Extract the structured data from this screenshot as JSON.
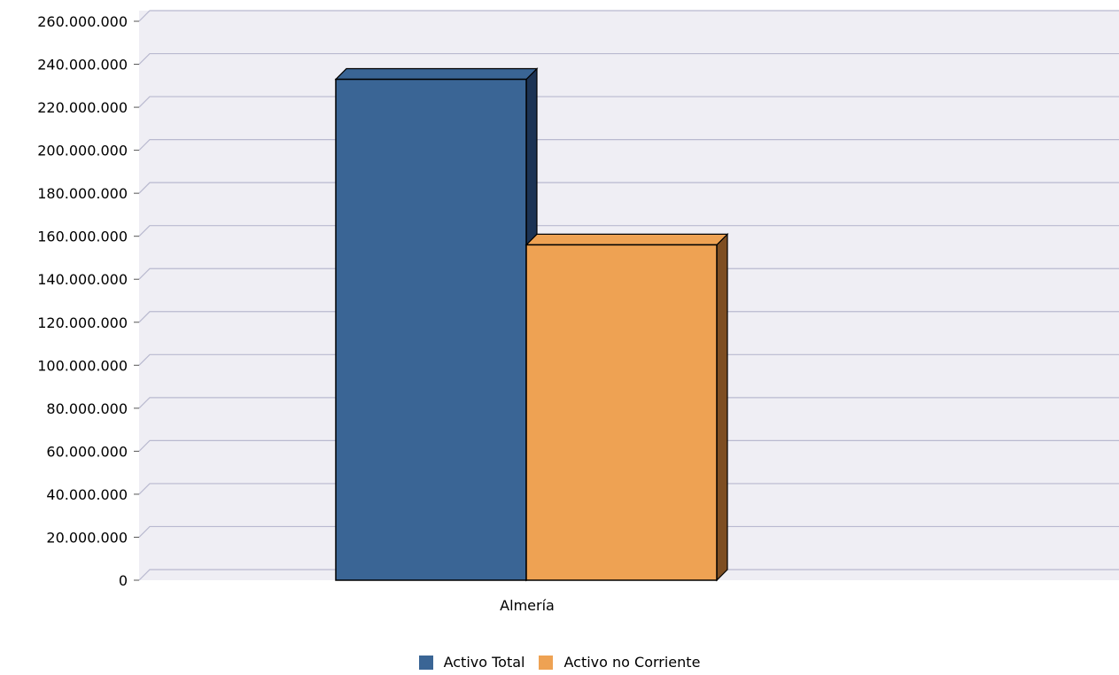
{
  "chart_data": {
    "type": "bar",
    "title": "",
    "xlabel": "",
    "ylabel": "",
    "categories": [
      "Almería"
    ],
    "series": [
      {
        "name": "Activo Total",
        "values": [
          233000000
        ],
        "color": "#3a6595",
        "dark_color": "#1c3354"
      },
      {
        "name": "Activo no Corriente",
        "values": [
          156000000
        ],
        "color": "#eea253",
        "dark_color": "#7e4e22"
      }
    ],
    "ylim": [
      0,
      260000000
    ],
    "y_ticks": [
      {
        "value": 0,
        "label": "0"
      },
      {
        "value": 20000000,
        "label": "20.000.000"
      },
      {
        "value": 40000000,
        "label": "40.000.000"
      },
      {
        "value": 60000000,
        "label": "60.000.000"
      },
      {
        "value": 80000000,
        "label": "80.000.000"
      },
      {
        "value": 100000000,
        "label": "100.000.000"
      },
      {
        "value": 120000000,
        "label": "120.000.000"
      },
      {
        "value": 140000000,
        "label": "140.000.000"
      },
      {
        "value": 160000000,
        "label": "160.000.000"
      },
      {
        "value": 180000000,
        "label": "180.000.000"
      },
      {
        "value": 200000000,
        "label": "200.000.000"
      },
      {
        "value": 220000000,
        "label": "220.000.000"
      },
      {
        "value": 240000000,
        "label": "240.000.000"
      },
      {
        "value": 260000000,
        "label": "260.000.000"
      }
    ],
    "grid": true,
    "legend_position": "bottom-center",
    "plot_background": "#efeef4",
    "grid_color": "#b9b9cf"
  }
}
